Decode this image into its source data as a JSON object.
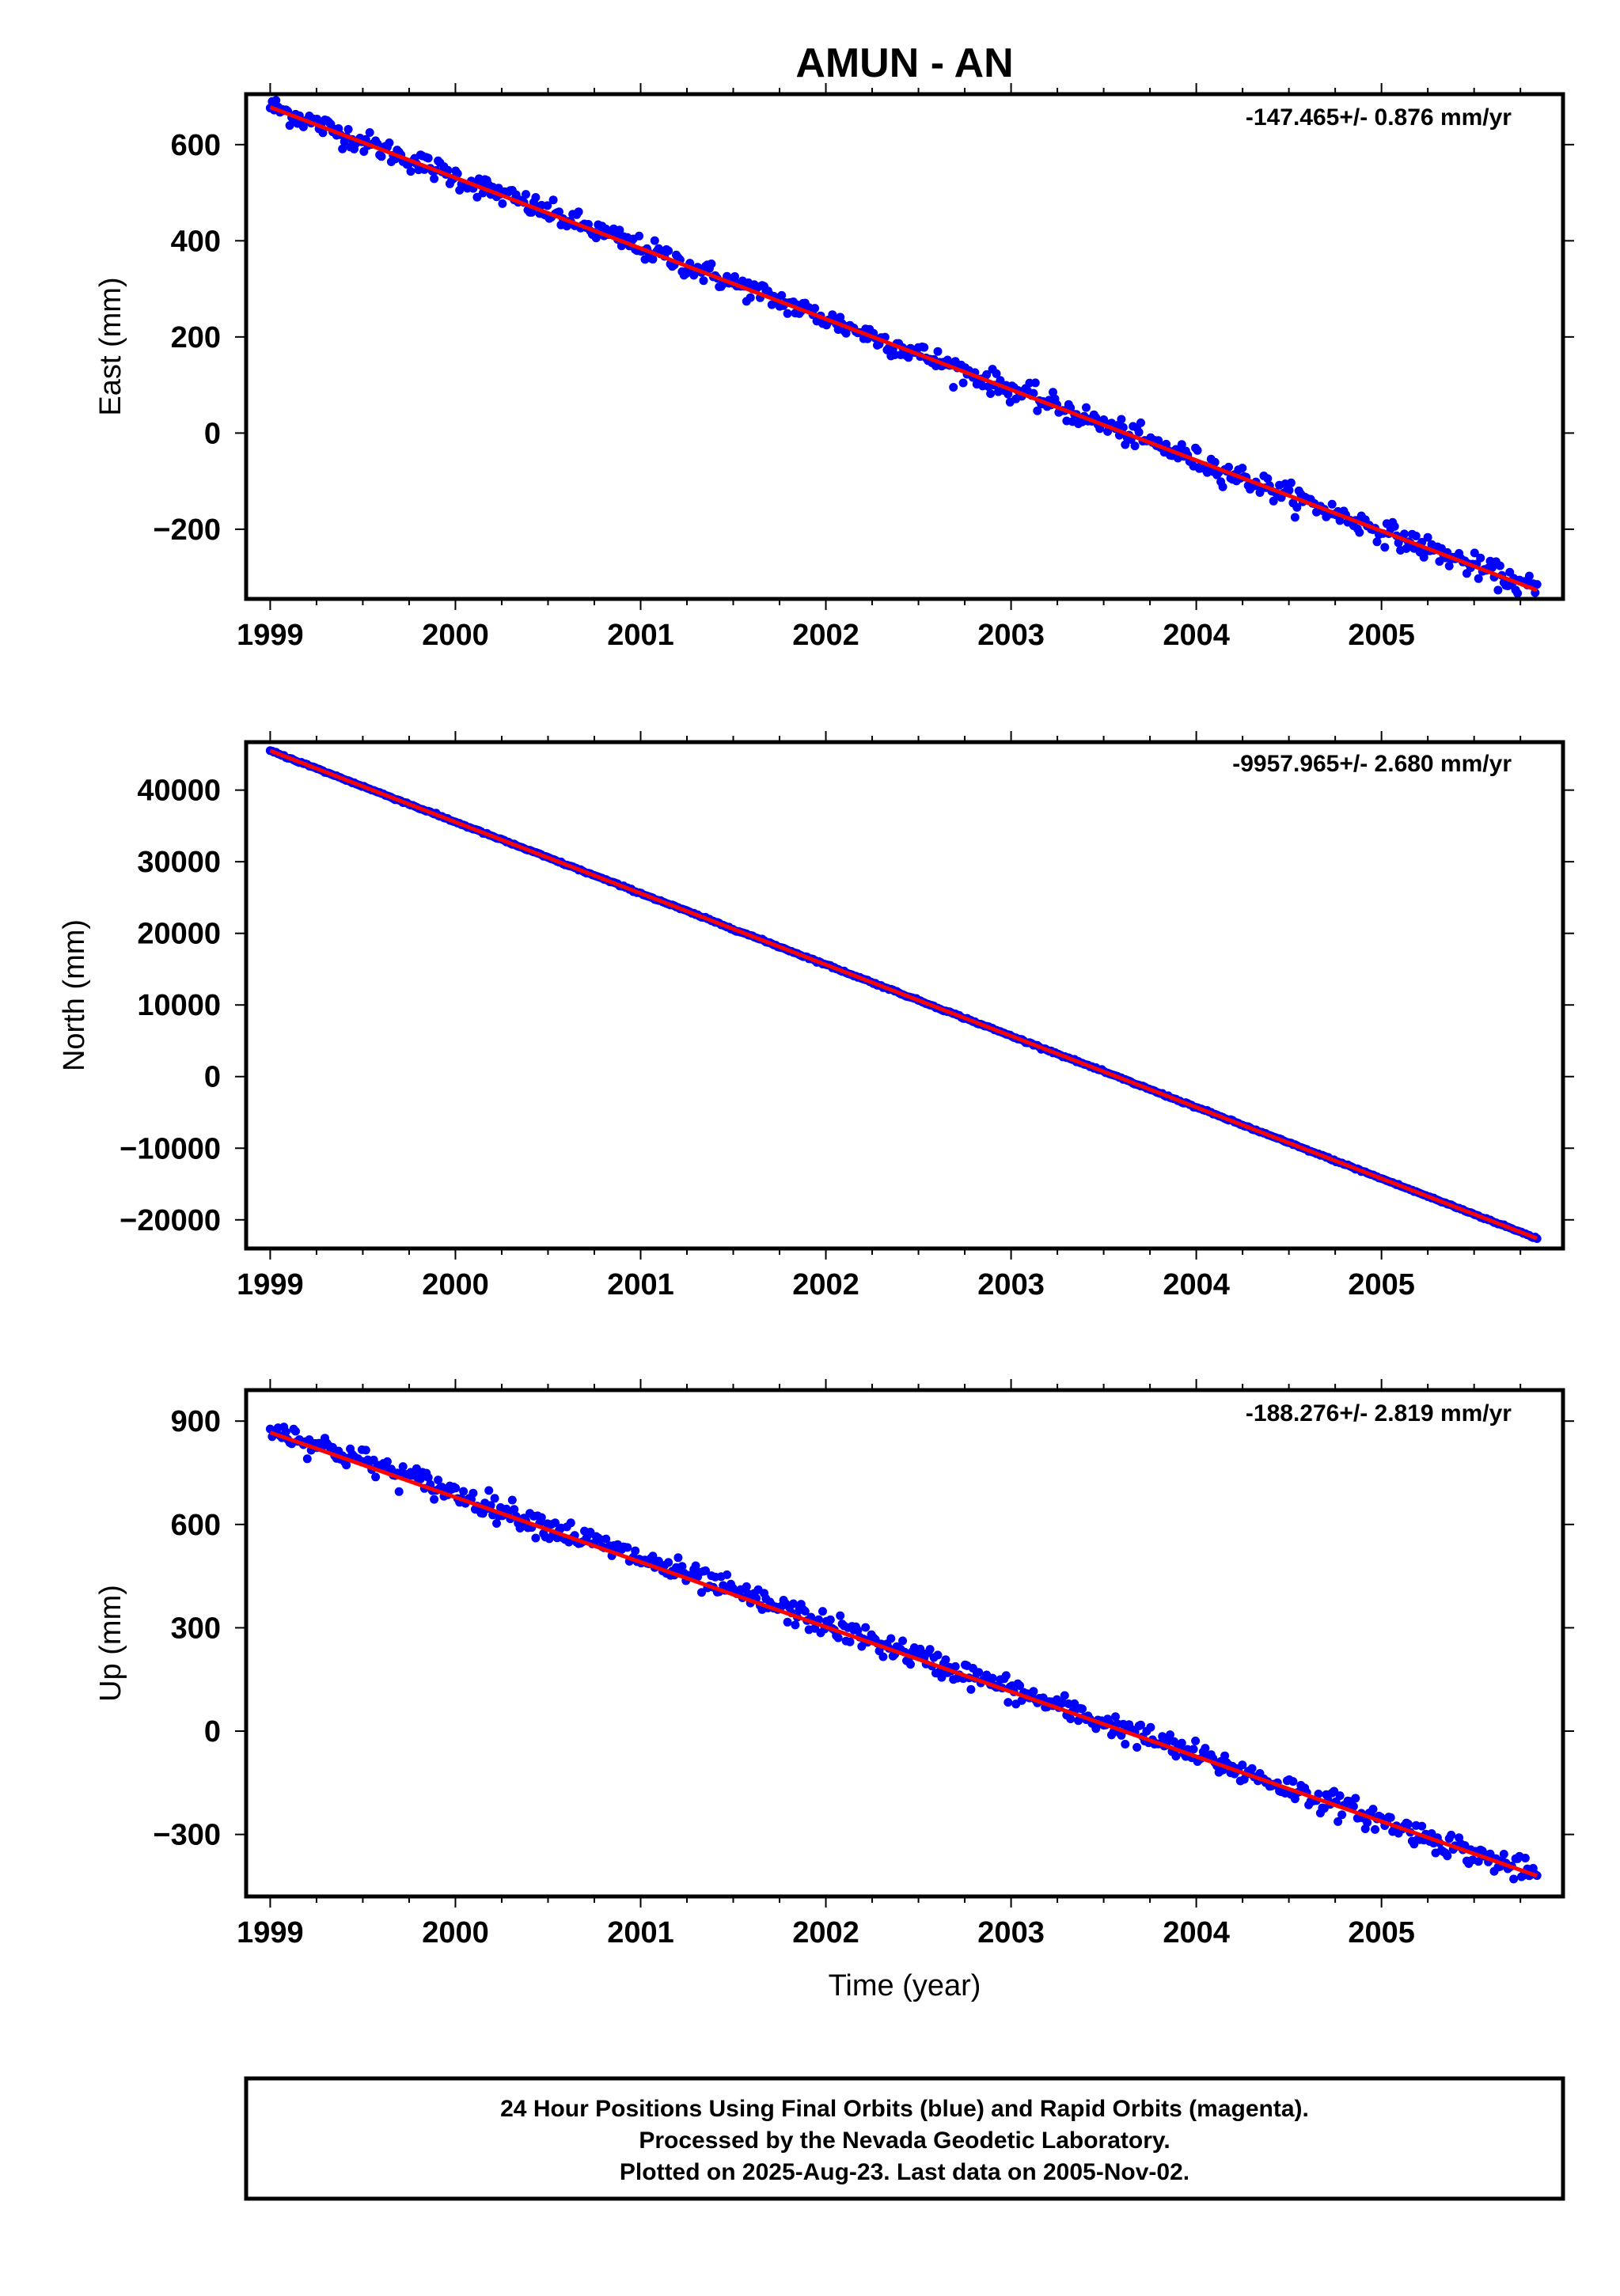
{
  "chart_data": [
    {
      "type": "scatter",
      "title": "AMUN - AN",
      "xlabel": "",
      "ylabel": "East (mm)",
      "rate_label": "-147.465+/- 0.876 mm/yr",
      "x_ticks": [
        "1999",
        "2000",
        "2001",
        "2002",
        "2003",
        "2004",
        "2005"
      ],
      "y_ticks": [
        "600",
        "400",
        "200",
        "0",
        "−200"
      ],
      "xlim": [
        1998.87,
        2005.98
      ],
      "ylim": [
        -345,
        705
      ],
      "grid": false,
      "series": [
        {
          "color": "#0000ff",
          "start": [
            1999.0,
            680
          ],
          "end": [
            2005.84,
            -327
          ],
          "jitter": 12,
          "count": 650
        },
        {
          "color": "#ff0000",
          "x": [
            1999.0,
            2005.84
          ],
          "y": [
            678,
            -327
          ]
        }
      ]
    },
    {
      "type": "scatter",
      "title": "",
      "xlabel": "",
      "ylabel": "North (mm)",
      "rate_label": "-9957.965+/- 2.680 mm/yr",
      "x_ticks": [
        "1999",
        "2000",
        "2001",
        "2002",
        "2003",
        "2004",
        "2005"
      ],
      "y_ticks": [
        "40000",
        "30000",
        "20000",
        "10000",
        "0",
        "−10000",
        "−20000"
      ],
      "xlim": [
        1998.87,
        2005.98
      ],
      "ylim": [
        -24000,
        46700
      ],
      "grid": false,
      "series": [
        {
          "color": "#0000ff",
          "start": [
            1999.0,
            45500
          ],
          "end": [
            2005.84,
            -22600
          ],
          "jitter": 60,
          "count": 650
        },
        {
          "color": "#ff0000",
          "x": [
            1999.0,
            2005.84
          ],
          "y": [
            45500,
            -22600
          ]
        }
      ]
    },
    {
      "type": "scatter",
      "title": "",
      "xlabel": "Time (year)",
      "ylabel": "Up (mm)",
      "rate_label": "-188.276+/- 2.819 mm/yr",
      "x_ticks": [
        "1999",
        "2000",
        "2001",
        "2002",
        "2003",
        "2004",
        "2005"
      ],
      "y_ticks": [
        "900",
        "600",
        "300",
        "0",
        "−300"
      ],
      "xlim": [
        1998.87,
        2005.98
      ],
      "ylim": [
        -480,
        990
      ],
      "grid": false,
      "series": [
        {
          "color": "#0000ff",
          "start": [
            1999.0,
            880
          ],
          "end": [
            2005.84,
            -420
          ],
          "jitter": 18,
          "count": 650
        },
        {
          "color": "#ff0000",
          "x": [
            1999.0,
            2005.84
          ],
          "y": [
            867,
            -420
          ]
        }
      ]
    }
  ],
  "footer": {
    "line1": "24 Hour Positions Using Final Orbits (blue) and Rapid Orbits (magenta).",
    "line2": "Processed by the Nevada Geodetic Laboratory.",
    "line3": "Plotted on 2025-Aug-23. Last data on 2005-Nov-02."
  }
}
